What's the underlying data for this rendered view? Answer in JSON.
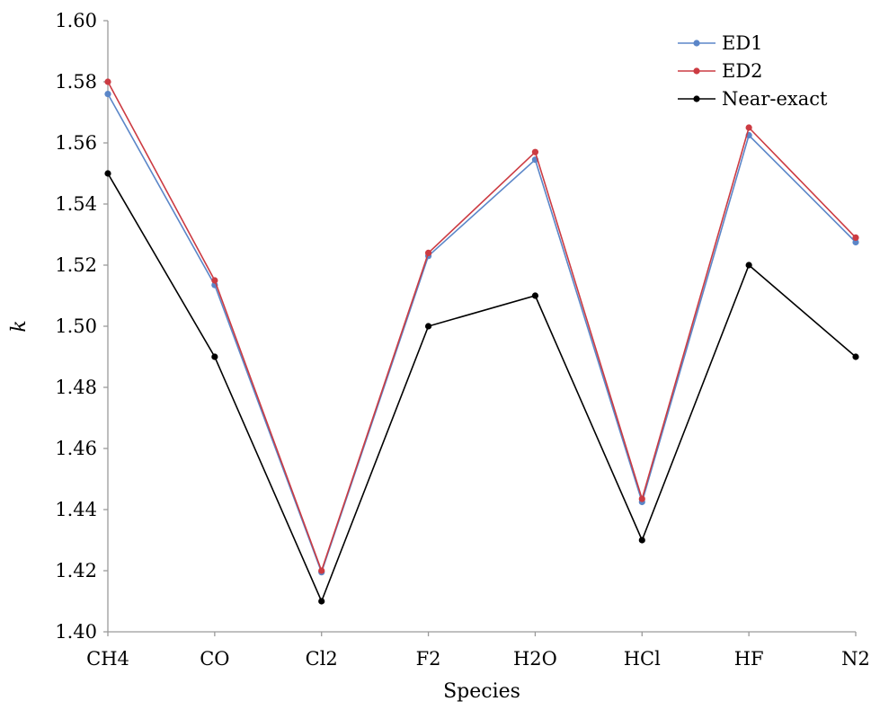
{
  "chart_data": {
    "type": "line",
    "title": "",
    "xlabel": "Species",
    "ylabel": "k",
    "categories": [
      "CH4",
      "CO",
      "Cl2",
      "F2",
      "H2O",
      "HCl",
      "HF",
      "N2"
    ],
    "ylim": [
      1.4,
      1.6
    ],
    "yticks": [
      "1.40",
      "1.42",
      "1.44",
      "1.46",
      "1.48",
      "1.50",
      "1.52",
      "1.54",
      "1.56",
      "1.58",
      "1.60"
    ],
    "grid": false,
    "legend_position": "top-right",
    "series": [
      {
        "name": "ED1",
        "color": "#5b86c8",
        "values": [
          1.576,
          1.5135,
          1.4195,
          1.523,
          1.5545,
          1.4425,
          1.5625,
          1.5275
        ]
      },
      {
        "name": "ED2",
        "color": "#cc3b42",
        "values": [
          1.58,
          1.515,
          1.42,
          1.524,
          1.557,
          1.4435,
          1.565,
          1.529
        ]
      },
      {
        "name": "Near-exact",
        "color": "#000000",
        "values": [
          1.55,
          1.49,
          1.41,
          1.5,
          1.51,
          1.43,
          1.52,
          1.49
        ]
      }
    ]
  }
}
